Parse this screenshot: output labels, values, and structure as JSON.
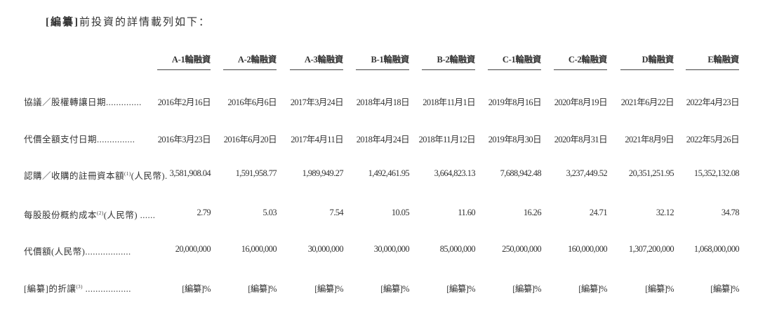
{
  "title": {
    "redacted": "[編纂]",
    "text": "前投資的詳情載列如下："
  },
  "columns": [
    "A-1輪融資",
    "A-2輪融資",
    "A-3輪融資",
    "B-1輪融資",
    "B-2輪融資",
    "C-1輪融資",
    "C-2輪融資",
    "D輪融資",
    "E輪融資"
  ],
  "rows": [
    {
      "label": "協議／股權轉讓日期..............",
      "note": "",
      "values": [
        "2016年2月16日",
        "2016年6月6日",
        "2017年3月24日",
        "2018年4月18日",
        "2018年11月1日",
        "2019年8月16日",
        "2020年8月19日",
        "2021年6月22日",
        "2022年4月23日"
      ]
    },
    {
      "label": "代價全額支付日期...............",
      "note": "",
      "values": [
        "2016年3月23日",
        "2016年6月20日",
        "2017年4月11日",
        "2018年4月24日",
        "2018年11月12日",
        "2019年8月30日",
        "2020年8月31日",
        "2021年8月9日",
        "2022年5月26日"
      ]
    },
    {
      "label": "認購／收購的註冊資本額",
      "note": "(1)",
      "label_suffix": "(人民幣).",
      "values": [
        "3,581,908.04",
        "1,591,958.77",
        "1,989,949.27",
        "1,492,461.95",
        "3,664,823.13",
        "7,688,942.48",
        "3,237,449.52",
        "20,351,251.95",
        "15,352,132.08"
      ]
    },
    {
      "label": "每股股份概約成本",
      "note": "(2)",
      "label_suffix": "(人民幣) ......",
      "values": [
        "2.79",
        "5.03",
        "7.54",
        "10.05",
        "11.60",
        "16.26",
        "24.71",
        "32.12",
        "34.78"
      ]
    },
    {
      "label": "代價額(人民幣)..................",
      "note": "",
      "values": [
        "20,000,000",
        "16,000,000",
        "30,000,000",
        "30,000,000",
        "85,000,000",
        "250,000,000",
        "160,000,000",
        "1,307,200,000",
        "1,068,000,000"
      ]
    },
    {
      "label": "[編纂]的折讓",
      "note": "(3)",
      "label_suffix": " ..................",
      "values": [
        "[編纂]%",
        "[編纂]%",
        "[編纂]%",
        "[編纂]%",
        "[編纂]%",
        "[編纂]%",
        "[編纂]%",
        "[編纂]%",
        "[編纂]%"
      ]
    }
  ]
}
